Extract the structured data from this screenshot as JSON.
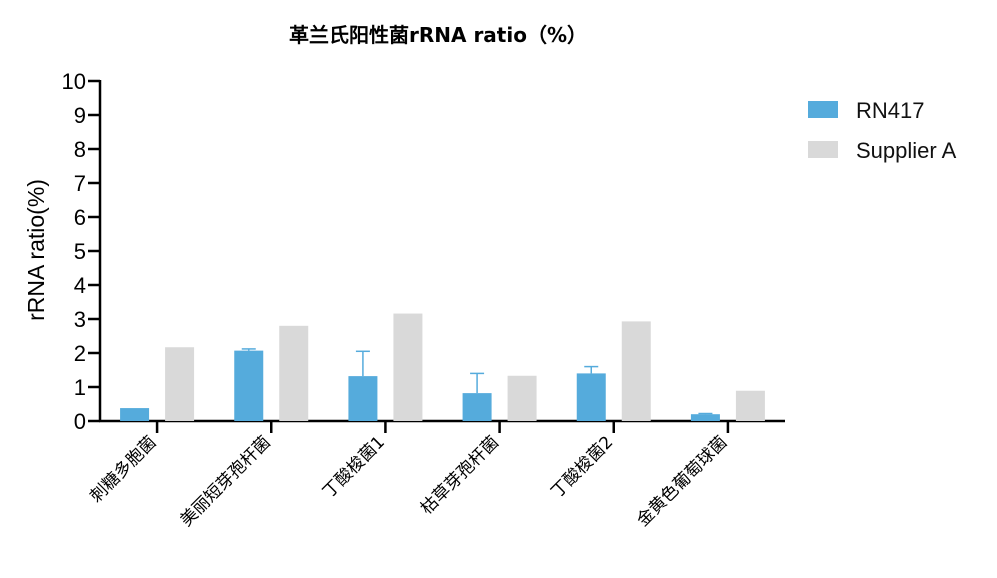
{
  "chart_data": {
    "type": "bar",
    "title": "革兰氏阳性菌rRNA ratio（%）",
    "xlabel": "",
    "ylabel": "rRNA ratio(%)",
    "ylim": [
      0,
      10
    ],
    "yticks": [
      0,
      1,
      2,
      3,
      4,
      5,
      6,
      7,
      8,
      9,
      10
    ],
    "categories": [
      "刺糖多胞菌",
      "美丽短芽孢杆菌",
      "丁酸梭菌1",
      "枯草芽孢杆菌",
      "丁酸梭菌2",
      "金黄色葡萄球菌"
    ],
    "series": [
      {
        "name": "RN417",
        "color": "#55ABDC",
        "values": [
          0.38,
          2.07,
          1.32,
          0.82,
          1.4,
          0.2
        ],
        "error_upper": [
          0.0,
          0.05,
          0.73,
          0.58,
          0.2,
          0.02
        ]
      },
      {
        "name": "Supplier A",
        "color": "#D9D9D9",
        "values": [
          2.17,
          2.8,
          3.16,
          1.33,
          2.93,
          0.89
        ]
      }
    ],
    "legend_position": "top-right",
    "grid": false
  }
}
